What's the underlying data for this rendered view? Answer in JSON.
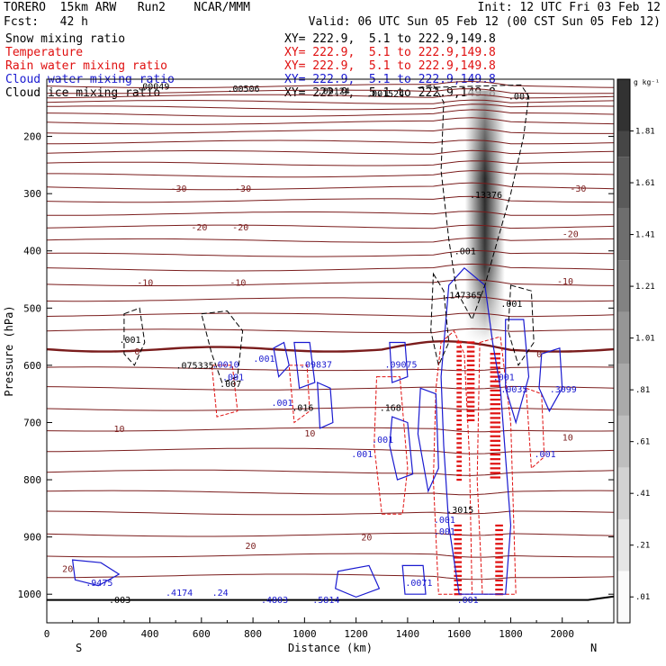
{
  "header": {
    "model": "TORERO  15km ARW   Run2    NCAR/MMM",
    "fcst": "Fcst:   42 h",
    "init": "Init: 12 UTC Fri 03 Feb 12",
    "valid": "Valid: 06 UTC Sun 05 Feb 12 (00 CST Sun 05 Feb 12)"
  },
  "fields": [
    {
      "name": "Snow mixing ratio",
      "xy": "XY= 222.9,  5.1 to 222.9,149.8",
      "color": "#000000"
    },
    {
      "name": "Temperature",
      "xy": "XY= 222.9,  5.1 to 222.9,149.8",
      "color": "#e01010"
    },
    {
      "name": "Rain water mixing ratio",
      "xy": "XY= 222.9,  5.1 to 222.9,149.8",
      "color": "#e01010"
    },
    {
      "name": "Cloud water mixing ratio",
      "xy": "XY= 222.9,  5.1 to 222.9,149.8",
      "color": "#1a1ad0"
    },
    {
      "name": "Cloud ice mixing ratio",
      "xy": "XY= 222.9,  5.1 to 222.9,149.8",
      "color": "#000000"
    }
  ],
  "chart_data": {
    "type": "cross-section contour",
    "xlabel": "Distance (km)",
    "ylabel": "Pressure (hPa)",
    "xlim": [
      0,
      2200
    ],
    "ylim": [
      1050,
      100
    ],
    "x_ticks": [
      0,
      200,
      400,
      600,
      800,
      1000,
      1200,
      1400,
      1600,
      1800,
      2000
    ],
    "y_ticks": [
      200,
      300,
      400,
      500,
      600,
      700,
      800,
      900,
      1000
    ],
    "x_endpoints": {
      "left": "S",
      "right": "N"
    },
    "colorbar": {
      "unit": "g kg⁻¹",
      "levels": [
        ".01",
        ".21",
        ".41",
        ".61",
        ".81",
        "1.01",
        "1.21",
        "1.41",
        "1.61",
        "1.81"
      ]
    },
    "temperature_labels": [
      {
        "text": "-30",
        "x": 480,
        "p": 290
      },
      {
        "text": "-30",
        "x": 730,
        "p": 290
      },
      {
        "text": "-30",
        "x": 2030,
        "p": 290
      },
      {
        "text": "-20",
        "x": 560,
        "p": 358
      },
      {
        "text": "-20",
        "x": 720,
        "p": 358
      },
      {
        "text": "-20",
        "x": 2000,
        "p": 370
      },
      {
        "text": "-10",
        "x": 350,
        "p": 455
      },
      {
        "text": "-10",
        "x": 710,
        "p": 455
      },
      {
        "text": "-10",
        "x": 1980,
        "p": 452
      },
      {
        "text": "0",
        "x": 340,
        "p": 575
      },
      {
        "text": "0",
        "x": 1900,
        "p": 580
      },
      {
        "text": "10",
        "x": 260,
        "p": 710
      },
      {
        "text": "10",
        "x": 1000,
        "p": 718
      },
      {
        "text": "10",
        "x": 2000,
        "p": 725
      },
      {
        "text": "20",
        "x": 770,
        "p": 915
      },
      {
        "text": "20",
        "x": 1220,
        "p": 900
      },
      {
        "text": "20",
        "x": 60,
        "p": 955
      }
    ],
    "maxima_values": [
      {
        "text": ".13376",
        "x": 1690,
        "p": 292
      },
      {
        "text": ".147365",
        "x": 1590,
        "p": 467
      },
      {
        "text": ".075335",
        "x": 550,
        "p": 590
      },
      {
        "text": ".0010",
        "x": 690,
        "p": 588
      },
      {
        "text": ".001",
        "x": 850,
        "p": 578
      },
      {
        "text": ".09837",
        "x": 1030,
        "p": 588
      },
      {
        "text": ".09075",
        "x": 1360,
        "p": 588
      },
      {
        "text": ".3099",
        "x": 2000,
        "p": 632
      },
      {
        "text": ".0035",
        "x": 1810,
        "p": 632
      },
      {
        "text": ".016",
        "x": 1000,
        "p": 664
      },
      {
        "text": ".168",
        "x": 1340,
        "p": 664
      },
      {
        "text": ".3015",
        "x": 1600,
        "p": 842
      },
      {
        "text": ".9475",
        "x": 200,
        "p": 970
      },
      {
        "text": ".4174",
        "x": 510,
        "p": 987
      },
      {
        "text": ".24",
        "x": 690,
        "p": 987
      },
      {
        "text": ".4803",
        "x": 880,
        "p": 1000
      },
      {
        "text": ".5814",
        "x": 1080,
        "p": 1000
      },
      {
        "text": ".0071",
        "x": 1440,
        "p": 970
      },
      {
        "text": ".003",
        "x": 290,
        "p": 1000
      },
      {
        "text": ".001",
        "x": 1630,
        "p": 390
      },
      {
        "text": ".001",
        "x": 1810,
        "p": 482
      },
      {
        "text": ".001",
        "x": 330,
        "p": 545
      },
      {
        "text": ".001",
        "x": 730,
        "p": 610
      },
      {
        "text": ".007",
        "x": 720,
        "p": 622
      },
      {
        "text": ".001",
        "x": 920,
        "p": 655
      },
      {
        "text": ".001",
        "x": 1310,
        "p": 720
      },
      {
        "text": ".001",
        "x": 1230,
        "p": 745
      },
      {
        "text": ".001",
        "x": 1550,
        "p": 860
      },
      {
        "text": ".001",
        "x": 1550,
        "p": 880
      },
      {
        "text": ".001",
        "x": 1780,
        "p": 610
      },
      {
        "text": ".001",
        "x": 1940,
        "p": 745
      },
      {
        "text": ".001",
        "x": 1640,
        "p": 1000
      },
      {
        "text": ".001",
        "x": 1840,
        "p": 120
      }
    ],
    "top_labels": [
      {
        "text": ".00049",
        "x": 350,
        "p": 112
      },
      {
        "text": ".00506",
        "x": 700,
        "p": 116
      },
      {
        "text": ".00124",
        "x": 1050,
        "p": 120
      },
      {
        "text": ".001524",
        "x": 1240,
        "p": 124
      }
    ],
    "snow_max_column": {
      "x": 1700,
      "p_top": 120,
      "p_bottom": 560,
      "peak_p": 310
    }
  }
}
